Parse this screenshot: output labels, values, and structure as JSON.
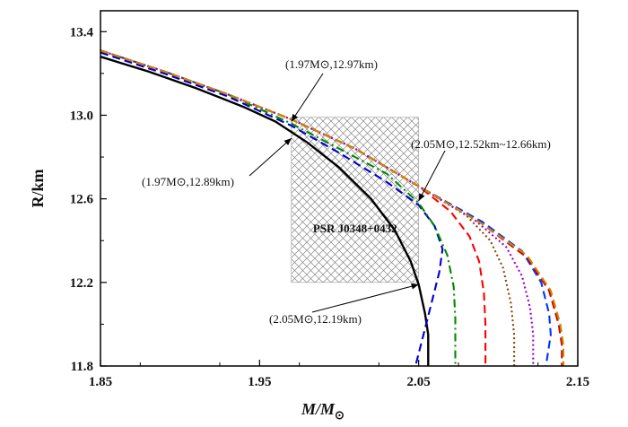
{
  "chart_data": {
    "type": "line",
    "xlabel": "M/M",
    "xlabel_sub": "⊙",
    "ylabel": "R/km",
    "xlim": [
      1.85,
      2.15
    ],
    "ylim": [
      11.8,
      13.5
    ],
    "xticks": [
      "1.85",
      "1.95",
      "2.05",
      "2.15"
    ],
    "yticks": [
      "11.8",
      "12.2",
      "12.6",
      "13.0",
      "13.4"
    ],
    "xtick_values": [
      1.85,
      1.95,
      2.05,
      2.15
    ],
    "ytick_values": [
      11.8,
      12.2,
      12.6,
      13.0,
      13.4
    ],
    "grid": false,
    "constraint_region": {
      "label": "PSR J0348+0432",
      "x": [
        1.97,
        2.05
      ],
      "y": [
        12.2,
        12.99
      ],
      "fill": "crosshatch"
    },
    "series": [
      {
        "color": "#000000",
        "style": "solid",
        "points": [
          [
            1.85,
            13.28
          ],
          [
            1.88,
            13.21
          ],
          [
            1.91,
            13.13
          ],
          [
            1.94,
            13.04
          ],
          [
            1.96,
            12.97
          ],
          [
            1.98,
            12.87
          ],
          [
            2.0,
            12.75
          ],
          [
            2.02,
            12.6
          ],
          [
            2.035,
            12.45
          ],
          [
            2.045,
            12.3
          ],
          [
            2.05,
            12.19
          ],
          [
            2.054,
            12.05
          ],
          [
            2.056,
            11.95
          ],
          [
            2.056,
            11.8
          ]
        ]
      },
      {
        "color": "#0000cc",
        "style": "dashed",
        "points": [
          [
            1.85,
            13.3
          ],
          [
            1.89,
            13.2
          ],
          [
            1.93,
            13.09
          ],
          [
            1.97,
            12.95
          ],
          [
            2.0,
            12.82
          ],
          [
            2.03,
            12.68
          ],
          [
            2.05,
            12.57
          ],
          [
            2.06,
            12.47
          ],
          [
            2.065,
            12.36
          ],
          [
            2.063,
            12.25
          ],
          [
            2.058,
            12.1
          ],
          [
            2.053,
            11.95
          ],
          [
            2.048,
            11.8
          ]
        ]
      },
      {
        "color": "#008800",
        "style": "dashdot",
        "points": [
          [
            1.85,
            13.31
          ],
          [
            1.89,
            13.21
          ],
          [
            1.93,
            13.1
          ],
          [
            1.97,
            12.96
          ],
          [
            2.0,
            12.84
          ],
          [
            2.03,
            12.72
          ],
          [
            2.05,
            12.58
          ],
          [
            2.06,
            12.47
          ],
          [
            2.068,
            12.33
          ],
          [
            2.072,
            12.18
          ],
          [
            2.073,
            12.03
          ],
          [
            2.073,
            11.8
          ]
        ]
      },
      {
        "color": "#ff0000",
        "style": "dashed",
        "points": [
          [
            1.85,
            13.31
          ],
          [
            1.89,
            13.21
          ],
          [
            1.93,
            13.1
          ],
          [
            1.97,
            12.98
          ],
          [
            2.01,
            12.84
          ],
          [
            2.05,
            12.66
          ],
          [
            2.07,
            12.54
          ],
          [
            2.082,
            12.42
          ],
          [
            2.088,
            12.3
          ],
          [
            2.091,
            12.15
          ],
          [
            2.092,
            12.0
          ],
          [
            2.092,
            11.8
          ]
        ]
      },
      {
        "color": "#884400",
        "style": "dotted",
        "points": [
          [
            1.85,
            13.31
          ],
          [
            1.89,
            13.21
          ],
          [
            1.93,
            13.1
          ],
          [
            1.97,
            12.98
          ],
          [
            2.01,
            12.84
          ],
          [
            2.05,
            12.66
          ],
          [
            2.08,
            12.52
          ],
          [
            2.095,
            12.4
          ],
          [
            2.103,
            12.27
          ],
          [
            2.108,
            12.1
          ],
          [
            2.11,
            11.95
          ],
          [
            2.11,
            11.8
          ]
        ]
      },
      {
        "color": "#9900cc",
        "style": "dotted",
        "points": [
          [
            1.85,
            13.31
          ],
          [
            1.89,
            13.21
          ],
          [
            1.93,
            13.1
          ],
          [
            1.97,
            12.98
          ],
          [
            2.01,
            12.84
          ],
          [
            2.05,
            12.66
          ],
          [
            2.085,
            12.5
          ],
          [
            2.105,
            12.37
          ],
          [
            2.115,
            12.23
          ],
          [
            2.12,
            12.08
          ],
          [
            2.122,
            11.95
          ],
          [
            2.122,
            11.8
          ]
        ]
      },
      {
        "color": "#0033ff",
        "style": "dashed",
        "points": [
          [
            1.85,
            13.31
          ],
          [
            1.89,
            13.21
          ],
          [
            1.93,
            13.1
          ],
          [
            1.97,
            12.98
          ],
          [
            2.01,
            12.84
          ],
          [
            2.05,
            12.66
          ],
          [
            2.09,
            12.49
          ],
          [
            2.115,
            12.35
          ],
          [
            2.127,
            12.2
          ],
          [
            2.132,
            12.05
          ],
          [
            2.133,
            11.95
          ],
          [
            2.13,
            11.8
          ]
        ]
      },
      {
        "color": "#cc0000",
        "style": "dashed",
        "points": [
          [
            1.85,
            13.31
          ],
          [
            1.89,
            13.21
          ],
          [
            1.93,
            13.1
          ],
          [
            1.97,
            12.98
          ],
          [
            2.01,
            12.84
          ],
          [
            2.05,
            12.66
          ],
          [
            2.09,
            12.48
          ],
          [
            2.118,
            12.32
          ],
          [
            2.132,
            12.16
          ],
          [
            2.138,
            12.0
          ],
          [
            2.14,
            11.9
          ],
          [
            2.14,
            11.8
          ]
        ]
      },
      {
        "color": "#cc8800",
        "style": "dashed",
        "points": [
          [
            1.85,
            13.31
          ],
          [
            1.89,
            13.21
          ],
          [
            1.93,
            13.1
          ],
          [
            1.97,
            12.98
          ],
          [
            2.01,
            12.84
          ],
          [
            2.05,
            12.66
          ],
          [
            2.09,
            12.48
          ],
          [
            2.118,
            12.33
          ],
          [
            2.133,
            12.16
          ],
          [
            2.139,
            12.0
          ],
          [
            2.141,
            11.9
          ],
          [
            2.141,
            11.8
          ]
        ]
      }
    ],
    "annotations": [
      {
        "text": "(1.97M⊙,12.97km)",
        "x": 1.97,
        "y": 12.97
      },
      {
        "text": "(1.97M⊙,12.89km)",
        "x": 1.97,
        "y": 12.89
      },
      {
        "text": "(2.05M⊙,12.52km~12.66km)",
        "x": 2.05,
        "y": 12.59
      },
      {
        "text": "(2.05M⊙,12.19km)",
        "x": 2.05,
        "y": 12.19
      }
    ]
  }
}
